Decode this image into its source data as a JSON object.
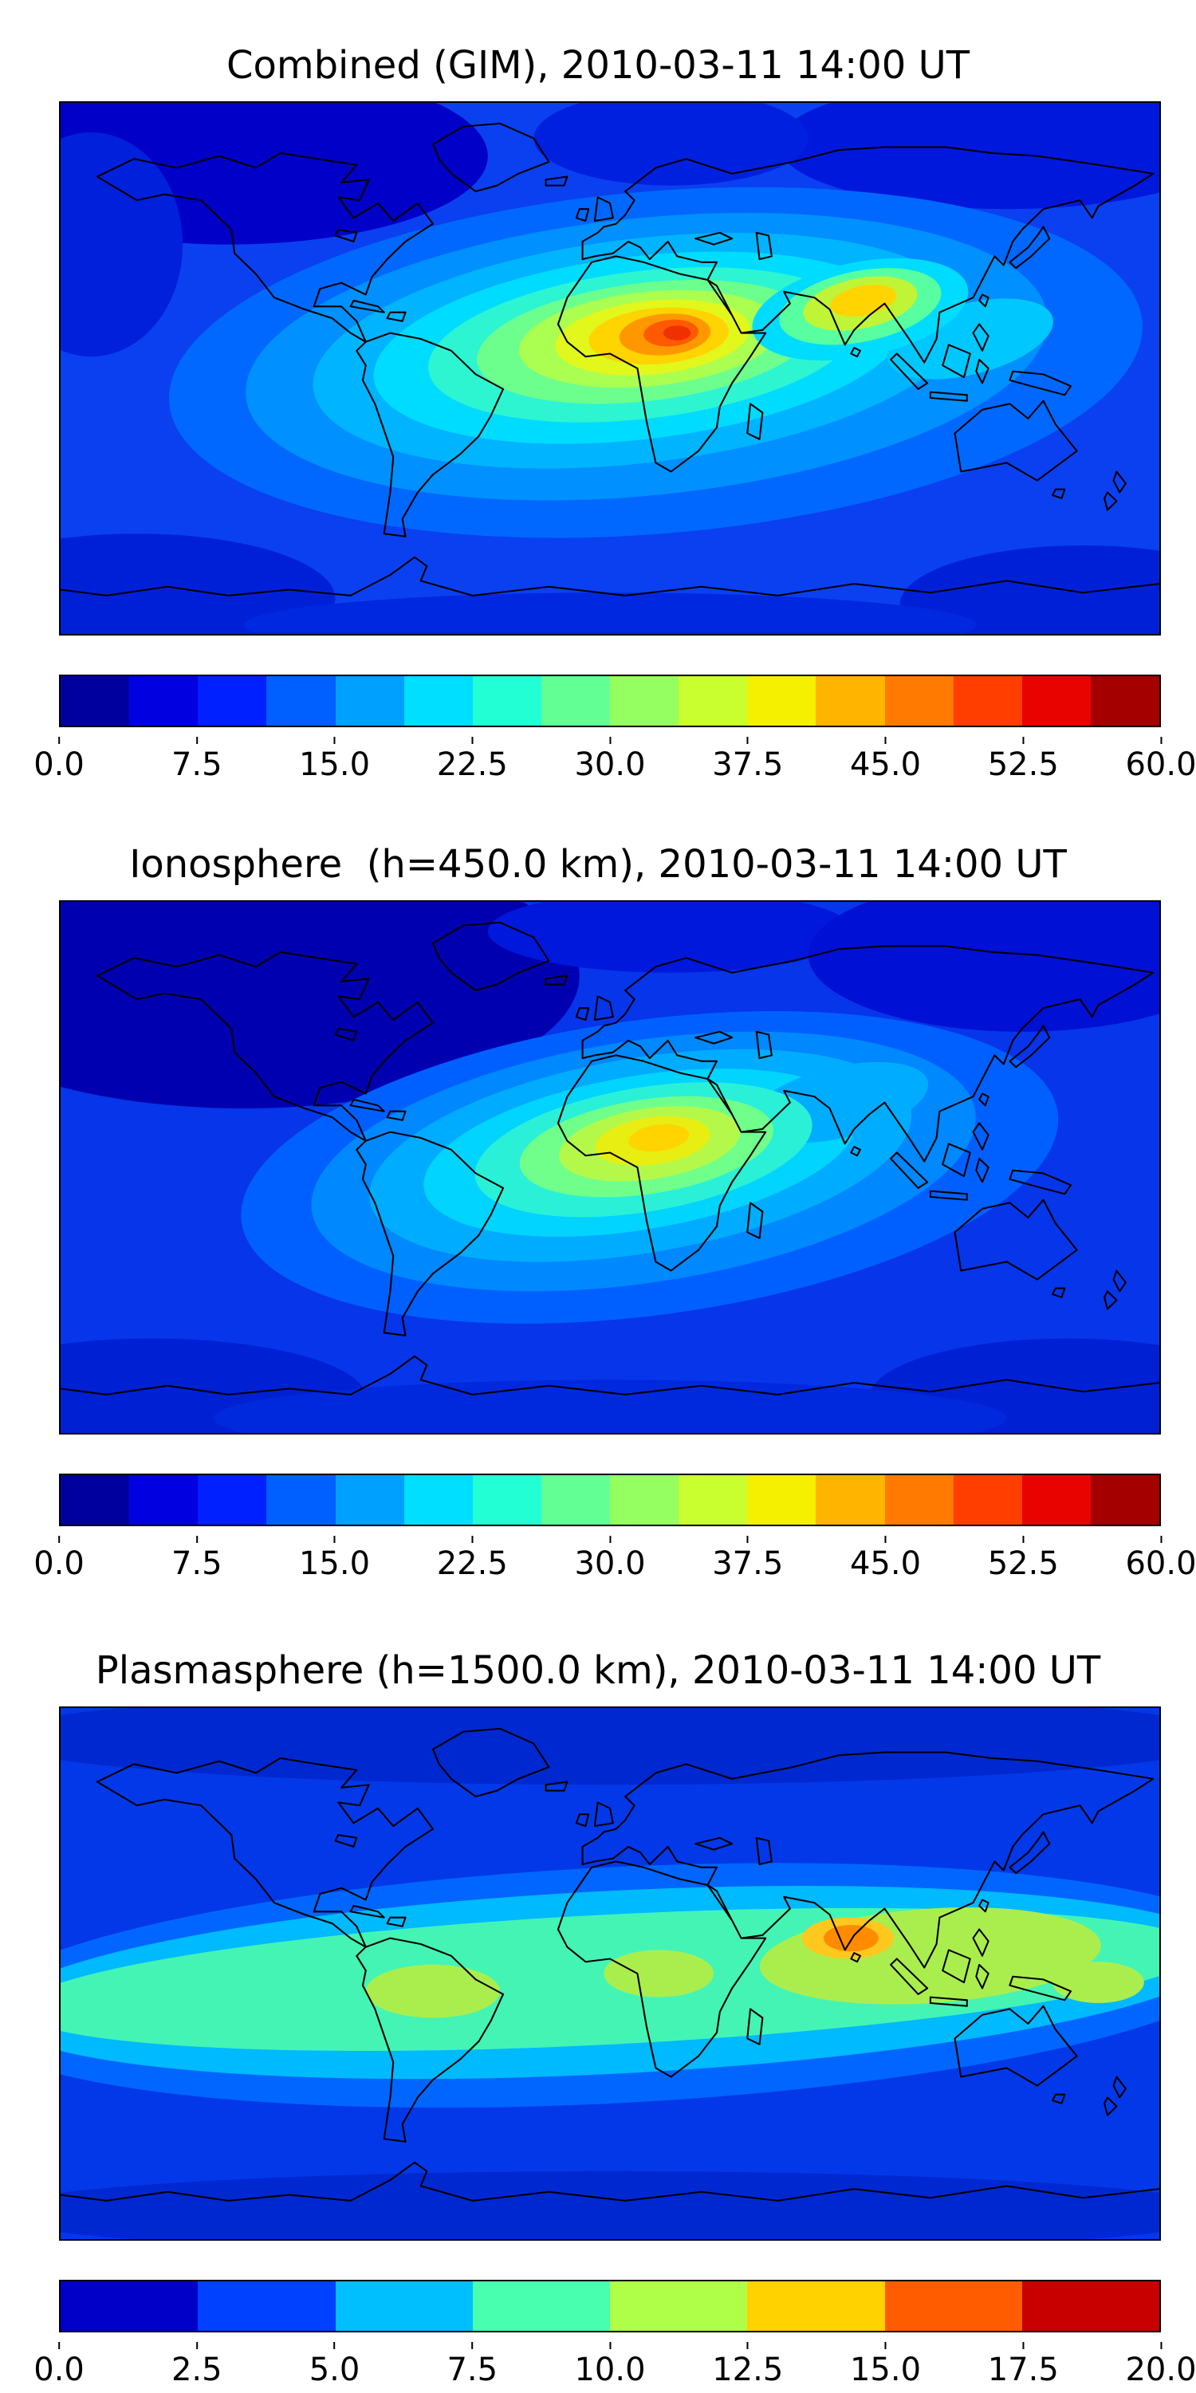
{
  "panels": [
    {
      "title": "Combined (GIM), 2010-03-11 14:00 UT",
      "colorbar": {
        "ticks": [
          "0.0",
          "7.5",
          "15.0",
          "22.5",
          "30.0",
          "37.5",
          "45.0",
          "52.5",
          "60.0"
        ],
        "colors": [
          "#00009f",
          "#0000e1",
          "#0020ff",
          "#0060ff",
          "#00a0ff",
          "#00dfff",
          "#22ffd4",
          "#62ff95",
          "#95ff62",
          "#c9ff2e",
          "#f4f000",
          "#ffb500",
          "#ff7a00",
          "#ff3e00",
          "#e80300",
          "#a40000"
        ]
      },
      "map": {
        "background": "#0a40f0",
        "blobs": [
          [
            55,
            18,
            85,
            30,
            0,
            "#0000c8"
          ],
          [
            310,
            14,
            75,
            22,
            0,
            "#0018dc"
          ],
          [
            200,
            12,
            45,
            16,
            0,
            "#0020e0"
          ],
          [
            10,
            48,
            30,
            38,
            0,
            "#0020dc"
          ],
          [
            25,
            168,
            65,
            22,
            0,
            "#0020d8"
          ],
          [
            335,
            170,
            60,
            20,
            0,
            "#0020d8"
          ],
          [
            180,
            177,
            120,
            11,
            0,
            "#0028e0"
          ],
          [
            195,
            88,
            160,
            58,
            -5,
            "#0068ff"
          ],
          [
            192,
            86,
            132,
            47,
            -6,
            "#0090ff"
          ],
          [
            190,
            84,
            108,
            38,
            -7,
            "#00b4ff"
          ],
          [
            190,
            83,
            88,
            31,
            -7,
            "#00dcff"
          ],
          [
            298,
            80,
            28,
            12,
            -15,
            "#00c8ff"
          ],
          [
            191,
            82,
            71,
            25,
            -7,
            "#2df5d2"
          ],
          [
            192,
            81,
            56,
            20,
            -7,
            "#6cff8e"
          ],
          [
            193,
            80,
            43,
            16,
            -6,
            "#aaff50"
          ],
          [
            194,
            79.5,
            32,
            12.5,
            -6,
            "#e2f71c"
          ],
          [
            196,
            79,
            23,
            9.5,
            -5,
            "#ffd400"
          ],
          [
            198,
            78.5,
            15,
            7,
            -5,
            "#ff9800"
          ],
          [
            200,
            78,
            9,
            4.5,
            -5,
            "#ff5a00"
          ],
          [
            202,
            78,
            4.5,
            2.5,
            0,
            "#f03000"
          ],
          [
            262,
            70,
            36,
            16,
            -12,
            "#00dcff"
          ],
          [
            262,
            69,
            27,
            12,
            -12,
            "#58ffa0"
          ],
          [
            262,
            68,
            19,
            8.5,
            -12,
            "#c0f436"
          ],
          [
            263,
            67,
            11,
            5,
            -12,
            "#ffd400"
          ]
        ]
      }
    },
    {
      "title": "Ionosphere  (h=450.0 km), 2010-03-11 14:00 UT",
      "colorbar": {
        "ticks": [
          "0.0",
          "7.5",
          "15.0",
          "22.5",
          "30.0",
          "37.5",
          "45.0",
          "52.5",
          "60.0"
        ],
        "colors": [
          "#00009f",
          "#0000e1",
          "#0020ff",
          "#0060ff",
          "#00a0ff",
          "#00dfff",
          "#22ffd4",
          "#62ff95",
          "#95ff62",
          "#c9ff2e",
          "#f4f000",
          "#ffb500",
          "#ff7a00",
          "#ff3e00",
          "#e80300",
          "#a40000"
        ]
      },
      "map": {
        "background": "#0635ea",
        "blobs": [
          [
            60,
            25,
            110,
            45,
            0,
            "#0000b0"
          ],
          [
            200,
            10,
            60,
            14,
            0,
            "#0018dc"
          ],
          [
            315,
            18,
            70,
            26,
            0,
            "#0010d4"
          ],
          [
            30,
            168,
            70,
            20,
            0,
            "#0020d4"
          ],
          [
            330,
            168,
            65,
            20,
            0,
            "#0020d4"
          ],
          [
            180,
            175,
            130,
            13,
            0,
            "#0028dc"
          ],
          [
            193,
            90,
            135,
            50,
            -8,
            "#0060ff"
          ],
          [
            191,
            88,
            110,
            41,
            -9,
            "#0088ff"
          ],
          [
            190,
            86,
            90,
            33,
            -10,
            "#00acff"
          ],
          [
            190,
            85,
            72,
            26,
            -10,
            "#00d4ff"
          ],
          [
            255,
            68,
            30,
            12,
            -14,
            "#00acff"
          ],
          [
            191,
            84,
            56,
            21,
            -10,
            "#2af0d8"
          ],
          [
            192,
            83,
            42,
            16,
            -9,
            "#70ff8a"
          ],
          [
            193,
            82,
            30,
            12,
            -9,
            "#b4f94a"
          ],
          [
            194,
            81,
            19,
            8,
            -8,
            "#e8ee12"
          ],
          [
            196,
            80,
            10,
            4.5,
            -8,
            "#ffd400"
          ]
        ]
      }
    },
    {
      "title": "Plasmasphere (h=1500.0 km), 2010-03-11 14:00 UT",
      "colorbar": {
        "ticks": [
          "0.0",
          "2.5",
          "5.0",
          "7.5",
          "10.0",
          "12.5",
          "15.0",
          "17.5",
          "20.0"
        ],
        "colors": [
          "#0000c8",
          "#0040ff",
          "#00bfff",
          "#48ffaf",
          "#afff48",
          "#ffd200",
          "#ff5c00",
          "#c80000"
        ]
      },
      "map": {
        "background": "#0238e8",
        "blobs": [
          [
            180,
            10,
            205,
            16,
            0,
            "#0028d0"
          ],
          [
            180,
            171,
            205,
            14,
            0,
            "#0028d0"
          ],
          [
            180,
            94,
            212,
            40,
            -3,
            "#0066ff"
          ],
          [
            180,
            93,
            202,
            31,
            -3,
            "#00baff"
          ],
          [
            180,
            92,
            194,
            22,
            -3,
            "#44f4b4"
          ],
          [
            285,
            84,
            56,
            16,
            -4,
            "#aaee4e"
          ],
          [
            122,
            96,
            22,
            9,
            0,
            "#aaee4e"
          ],
          [
            196,
            90,
            18,
            8,
            0,
            "#aaee4e"
          ],
          [
            340,
            93,
            15,
            7,
            0,
            "#aaee4e"
          ],
          [
            258,
            78,
            15,
            7,
            0,
            "#ffc81e"
          ],
          [
            259,
            78,
            9,
            4.5,
            0,
            "#ff8c00"
          ]
        ]
      }
    }
  ],
  "chart_data": [
    {
      "type": "heatmap",
      "subtype": "filled_contour_world_map",
      "title": "Combined (GIM), 2010-03-11 14:00 UT",
      "timestamp": "2010-03-11 14:00 UT",
      "projection": "equirectangular",
      "lon_range": [
        -180,
        180
      ],
      "lat_range": [
        -90,
        90
      ],
      "colormap": "jet",
      "value_range": [
        0,
        60
      ],
      "colorbar_ticks": [
        0.0,
        7.5,
        15.0,
        22.5,
        30.0,
        37.5,
        45.0,
        52.5,
        60.0
      ],
      "features": [
        {
          "label": "primary maximum over central Africa",
          "lon": 22,
          "lat": 12,
          "value_approx": 55
        },
        {
          "label": "secondary maximum over India",
          "lon": 80,
          "lat": 20,
          "value_approx": 40
        },
        {
          "label": "broad daytime enhancement Atlantic-Africa-Asia",
          "value_approx": 25
        },
        {
          "label": "ocean/night background",
          "value_approx": 10
        },
        {
          "label": "high-latitude minimum (north Pacific / Arctic)",
          "value_approx": 4
        }
      ]
    },
    {
      "type": "heatmap",
      "subtype": "filled_contour_world_map",
      "title": "Ionosphere  (h=450.0 km), 2010-03-11 14:00 UT",
      "timestamp": "2010-03-11 14:00 UT",
      "projection": "equirectangular",
      "lon_range": [
        -180,
        180
      ],
      "lat_range": [
        -90,
        90
      ],
      "colormap": "jet",
      "value_range": [
        0,
        60
      ],
      "colorbar_ticks": [
        0.0,
        7.5,
        15.0,
        22.5,
        30.0,
        37.5,
        45.0,
        52.5,
        60.0
      ],
      "features": [
        {
          "label": "primary maximum over central Africa",
          "lon": 18,
          "lat": 8,
          "value_approx": 38
        },
        {
          "label": "enhancement tilted toward India",
          "lon": 70,
          "lat": 20,
          "value_approx": 22
        },
        {
          "label": "ocean background",
          "value_approx": 8
        },
        {
          "label": "dark minimum north Pacific / high latitudes",
          "value_approx": 3
        }
      ]
    },
    {
      "type": "heatmap",
      "subtype": "filled_contour_world_map",
      "title": "Plasmasphere (h=1500.0 km), 2010-03-11 14:00 UT",
      "timestamp": "2010-03-11 14:00 UT",
      "projection": "equirectangular",
      "lon_range": [
        -180,
        180
      ],
      "lat_range": [
        -90,
        90
      ],
      "colormap": "jet",
      "value_range": [
        0,
        20
      ],
      "colorbar_ticks": [
        0.0,
        2.5,
        5.0,
        7.5,
        10.0,
        12.5,
        15.0,
        17.5,
        20.0
      ],
      "features": [
        {
          "label": "equatorial band spanning all longitudes",
          "lat_extent": [
            -20,
            20
          ],
          "value_approx": 8
        },
        {
          "label": "maximum over India",
          "lon": 78,
          "lat": 12,
          "value_approx": 16
        },
        {
          "label": "yellow-green patches South America / Africa / SE Asia",
          "value_approx": 11
        },
        {
          "label": "high-latitude background",
          "value_approx": 3
        }
      ]
    }
  ]
}
